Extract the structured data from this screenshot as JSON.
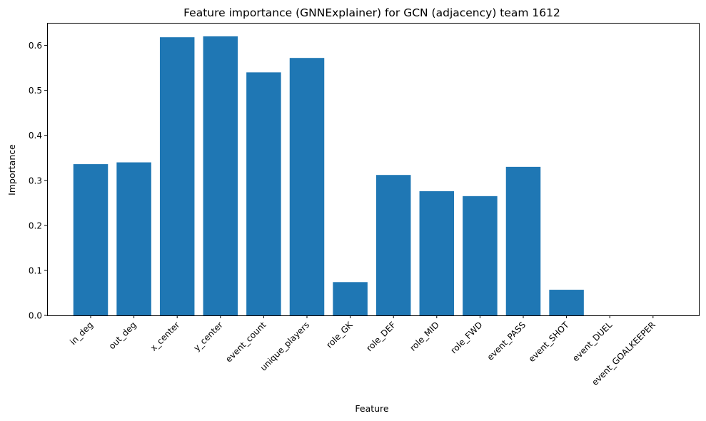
{
  "chart_data": {
    "type": "bar",
    "title": "Feature importance (GNNExplainer) for GCN (adjacency) team 1612",
    "xlabel": "Feature",
    "ylabel": "Importance",
    "categories": [
      "in_deg",
      "out_deg",
      "x_center",
      "y_center",
      "event_count",
      "unique_players",
      "role_GK",
      "role_DEF",
      "role_MID",
      "role_FWD",
      "event_PASS",
      "event_SHOT",
      "event_DUEL",
      "event_GOALKEEPER"
    ],
    "values": [
      0.336,
      0.34,
      0.618,
      0.62,
      0.54,
      0.572,
      0.074,
      0.312,
      0.276,
      0.265,
      0.33,
      0.057,
      0.0,
      0.0
    ],
    "ylim": [
      0,
      0.65
    ],
    "yticks": [
      0.0,
      0.1,
      0.2,
      0.3,
      0.4,
      0.5,
      0.6
    ],
    "ytick_labels": [
      "0.0",
      "0.1",
      "0.2",
      "0.3",
      "0.4",
      "0.5",
      "0.6"
    ],
    "bar_color": "#1f77b4",
    "grid": false
  }
}
